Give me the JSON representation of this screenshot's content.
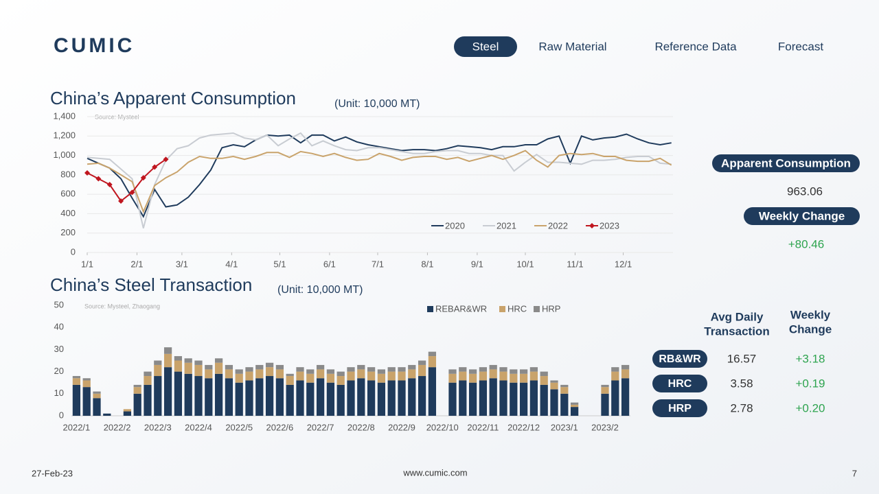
{
  "header": {
    "logo": "CUMIC",
    "nav": [
      "Steel",
      "Raw Material",
      "Reference Data",
      "Forecast"
    ],
    "active": 0
  },
  "chart_data": [
    {
      "type": "line",
      "title": "China’s Apparent Consumption",
      "unit": "(Unit: 10,000 MT)",
      "source": "Source: Mysteel",
      "x": [
        0,
        7,
        14,
        21,
        28,
        35,
        42,
        49,
        56,
        63,
        70,
        77,
        84,
        91,
        98,
        105,
        112,
        119,
        126,
        133,
        140,
        147,
        154,
        161,
        168,
        175,
        182,
        189,
        196,
        203,
        210,
        217,
        224,
        231,
        238,
        245,
        252,
        259,
        266,
        273,
        280,
        287,
        294,
        301,
        308,
        315,
        322,
        329,
        336,
        343,
        350,
        357,
        364
      ],
      "xlim": [
        0,
        365
      ],
      "xticks": [
        {
          "value": 0,
          "label": "1/1"
        },
        {
          "value": 31,
          "label": "2/1"
        },
        {
          "value": 59,
          "label": "3/1"
        },
        {
          "value": 90,
          "label": "4/1"
        },
        {
          "value": 120,
          "label": "5/1"
        },
        {
          "value": 151,
          "label": "6/1"
        },
        {
          "value": 181,
          "label": "7/1"
        },
        {
          "value": 212,
          "label": "8/1"
        },
        {
          "value": 243,
          "label": "9/1"
        },
        {
          "value": 273,
          "label": "10/1"
        },
        {
          "value": 304,
          "label": "11/1"
        },
        {
          "value": 334,
          "label": "12/1"
        }
      ],
      "ylim": [
        0,
        1400
      ],
      "yticks": [
        0,
        200,
        400,
        600,
        800,
        {
          "value": 1000,
          "label": "1,000"
        },
        {
          "value": 1200,
          "label": "1,200"
        },
        {
          "value": 1400,
          "label": "1,400"
        }
      ],
      "grid": true,
      "series": [
        {
          "name": "2020",
          "color": "#1f3b5c",
          "values": [
            970,
            920,
            870,
            760,
            560,
            370,
            650,
            470,
            490,
            570,
            700,
            850,
            1080,
            1110,
            1090,
            1160,
            1210,
            1200,
            1210,
            1130,
            1210,
            1210,
            1150,
            1190,
            1140,
            1110,
            1090,
            1070,
            1050,
            1060,
            1060,
            1050,
            1070,
            1100,
            1090,
            1080,
            1060,
            1090,
            1090,
            1110,
            1110,
            1170,
            1200,
            920,
            1200,
            1160,
            1180,
            1190,
            1220,
            1170,
            1130,
            1110,
            1130
          ]
        },
        {
          "name": "2021",
          "color": "#c8ccd2",
          "values": [
            980,
            970,
            960,
            860,
            760,
            250,
            700,
            950,
            1070,
            1100,
            1180,
            1210,
            1220,
            1230,
            1180,
            1160,
            1210,
            1100,
            1170,
            1230,
            1100,
            1150,
            1100,
            1060,
            1050,
            1080,
            1080,
            1060,
            1040,
            1020,
            1020,
            1040,
            1050,
            1050,
            1020,
            1020,
            1000,
            1000,
            840,
            930,
            1010,
            930,
            930,
            920,
            910,
            950,
            950,
            960,
            980,
            990,
            990,
            920,
            910
          ]
        },
        {
          "name": "2022",
          "color": "#c9a36b",
          "values": [
            910,
            920,
            870,
            800,
            730,
            420,
            690,
            770,
            830,
            930,
            990,
            970,
            970,
            990,
            960,
            990,
            1030,
            1030,
            980,
            1040,
            1020,
            990,
            1020,
            980,
            950,
            960,
            1020,
            990,
            950,
            980,
            990,
            990,
            960,
            980,
            940,
            970,
            1000,
            960,
            1000,
            1050,
            950,
            880,
            1000,
            1020,
            1010,
            1020,
            990,
            990,
            950,
            940,
            940,
            970,
            900
          ]
        },
        {
          "name": "2023",
          "color": "#c0161f",
          "marker": "diamond",
          "values": [
            820,
            760,
            700,
            530,
            620,
            770,
            880,
            960,
            null,
            null,
            null,
            null,
            null,
            null,
            null,
            null,
            null,
            null,
            null,
            null,
            null,
            null,
            null,
            null,
            null,
            null,
            null,
            null,
            null,
            null,
            null,
            null,
            null,
            null,
            null,
            null,
            null,
            null,
            null,
            null,
            null,
            null,
            null,
            null,
            null,
            null,
            null,
            null,
            null,
            null,
            null,
            null,
            null
          ]
        }
      ]
    },
    {
      "type": "stacked_bar",
      "title": "China’s Steel Transaction",
      "unit": "(Unit: 10,000 MT)",
      "source": "Source: Mysteel, Zhaogang",
      "categories": [
        "2022/1",
        null,
        null,
        null,
        "2022/2",
        null,
        null,
        null,
        "2022/3",
        null,
        null,
        null,
        "2022/4",
        null,
        null,
        null,
        "2022/5",
        null,
        null,
        null,
        "2022/6",
        null,
        null,
        null,
        "2022/7",
        null,
        null,
        null,
        "2022/8",
        null,
        null,
        null,
        "2022/9",
        null,
        null,
        null,
        "2022/10",
        null,
        null,
        null,
        "2022/11",
        null,
        null,
        null,
        "2022/12",
        null,
        null,
        null,
        "2023/1",
        null,
        null,
        null,
        "2023/2",
        null,
        null
      ],
      "ylim": [
        0,
        50
      ],
      "yticks": [
        0,
        10,
        20,
        30,
        40,
        50
      ],
      "grid": false,
      "series": [
        {
          "name": "REBAR&WR",
          "color": "#1f3b5c",
          "values": [
            14,
            13,
            8,
            1,
            0,
            2,
            10,
            14,
            18,
            22,
            20,
            19,
            18,
            17,
            19,
            17,
            15,
            16,
            17,
            18,
            17,
            14,
            16,
            15,
            17,
            15,
            14,
            16,
            17,
            16,
            15,
            16,
            16,
            17,
            18,
            22,
            0,
            15,
            16,
            15,
            16,
            17,
            16,
            15,
            15,
            16,
            14,
            12,
            10,
            4,
            0,
            0,
            10,
            16,
            17
          ]
        },
        {
          "name": "HRC",
          "color": "#c9a36b",
          "values": [
            3,
            3,
            2,
            0,
            0,
            1,
            3,
            4,
            5,
            6,
            5,
            5,
            5,
            4,
            5,
            4,
            4,
            4,
            4,
            4,
            4,
            4,
            4,
            4,
            4,
            4,
            4,
            4,
            4,
            4,
            4,
            4,
            4,
            4,
            5,
            5,
            0,
            4,
            4,
            4,
            4,
            4,
            4,
            4,
            4,
            4,
            4,
            3,
            3,
            1,
            0,
            0,
            3,
            4,
            4
          ]
        },
        {
          "name": "HRP",
          "color": "#8a8a8a",
          "values": [
            1,
            1,
            1,
            0,
            0,
            0,
            1,
            2,
            2,
            3,
            2,
            2,
            2,
            2,
            2,
            2,
            2,
            2,
            2,
            2,
            2,
            1,
            2,
            2,
            2,
            2,
            2,
            2,
            2,
            2,
            2,
            2,
            2,
            2,
            2,
            2,
            0,
            2,
            2,
            2,
            2,
            2,
            2,
            2,
            2,
            2,
            2,
            1,
            1,
            1,
            0,
            0,
            1,
            2,
            2
          ]
        }
      ]
    }
  ],
  "consumption_summary": {
    "label": "Apparent Consumption",
    "value": "963.06",
    "change_label": "Weekly Change",
    "change": "+80.46"
  },
  "transaction_table": {
    "columns": [
      [
        "Avg Daily",
        "Transaction"
      ],
      [
        "Weekly",
        "Change"
      ]
    ],
    "rows": [
      [
        "RB&WR",
        "16.57",
        "+3.18"
      ],
      [
        "HRC",
        "3.58",
        "+0.19"
      ],
      [
        "HRP",
        "2.78",
        "+0.20"
      ]
    ]
  },
  "footer": {
    "date": "27-Feb-23",
    "site": "www.cumic.com",
    "page": "7"
  }
}
